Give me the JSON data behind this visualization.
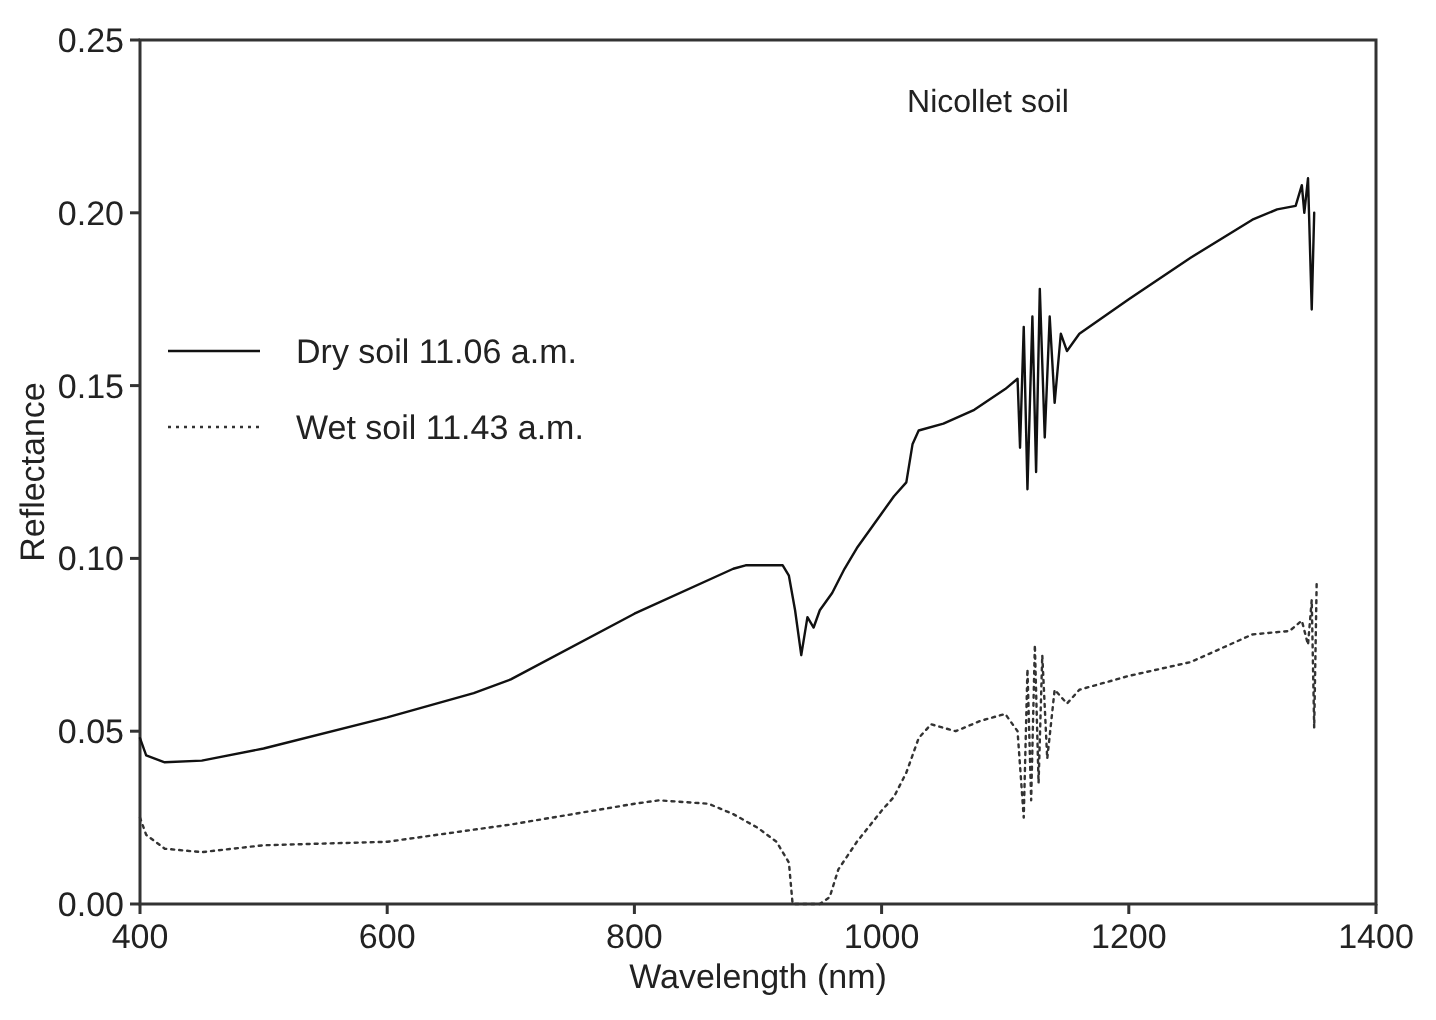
{
  "chart_data": {
    "type": "line",
    "xlabel": "Wavelength (nm)",
    "ylabel": "Reflectance",
    "annotations": [
      "Nicollet soil"
    ],
    "xlim": [
      400,
      1400
    ],
    "xticks": [
      400,
      600,
      800,
      1000,
      1200,
      1400
    ],
    "ylim": [
      0,
      0.25
    ],
    "yticks": [
      {
        "value": 0,
        "label": "0.00"
      },
      {
        "value": 0.05,
        "label": "0.05"
      },
      {
        "value": 0.1,
        "label": "0.10"
      },
      {
        "value": 0.15,
        "label": "0.15"
      },
      {
        "value": 0.2,
        "label": "0.20"
      },
      {
        "value": 0.25,
        "label": "0.25"
      }
    ],
    "grid": false,
    "legend": "left",
    "series": [
      {
        "name": "Dry soil 11.06 a.m.",
        "color": "#111111",
        "line_style": "solid",
        "x": [
          400,
          405,
          420,
          450,
          500,
          600,
          670,
          700,
          800,
          880,
          890,
          920,
          925,
          930,
          935,
          940,
          945,
          950,
          960,
          970,
          980,
          990,
          1000,
          1010,
          1020,
          1025,
          1030,
          1050,
          1075,
          1100,
          1110,
          1112,
          1115,
          1118,
          1122,
          1125,
          1128,
          1132,
          1136,
          1140,
          1145,
          1150,
          1160,
          1200,
          1250,
          1300,
          1320,
          1335,
          1340,
          1342,
          1345,
          1348,
          1350
        ],
        "values": [
          0.048,
          0.043,
          0.041,
          0.0415,
          0.045,
          0.054,
          0.061,
          0.065,
          0.084,
          0.097,
          0.098,
          0.098,
          0.095,
          0.085,
          0.072,
          0.083,
          0.08,
          0.085,
          0.09,
          0.097,
          0.103,
          0.108,
          0.113,
          0.118,
          0.122,
          0.133,
          0.137,
          0.139,
          0.143,
          0.149,
          0.152,
          0.132,
          0.167,
          0.12,
          0.17,
          0.125,
          0.178,
          0.135,
          0.17,
          0.145,
          0.165,
          0.16,
          0.165,
          0.175,
          0.187,
          0.198,
          0.201,
          0.202,
          0.208,
          0.2,
          0.21,
          0.172,
          0.2
        ]
      },
      {
        "name": "Wet soil 11.43 a.m.",
        "color": "#333333",
        "line_style": "dotted",
        "x": [
          400,
          405,
          420,
          450,
          500,
          600,
          700,
          800,
          820,
          860,
          880,
          900,
          915,
          925,
          928,
          950,
          958,
          965,
          980,
          1000,
          1010,
          1020,
          1030,
          1040,
          1060,
          1080,
          1100,
          1110,
          1115,
          1118,
          1121,
          1124,
          1127,
          1130,
          1134,
          1140,
          1150,
          1160,
          1200,
          1250,
          1300,
          1330,
          1340,
          1345,
          1348,
          1350,
          1352
        ],
        "values": [
          0.025,
          0.02,
          0.016,
          0.015,
          0.017,
          0.018,
          0.023,
          0.029,
          0.03,
          0.029,
          0.026,
          0.022,
          0.018,
          0.012,
          0,
          0,
          0.002,
          0.01,
          0.018,
          0.027,
          0.031,
          0.038,
          0.048,
          0.052,
          0.05,
          0.053,
          0.055,
          0.05,
          0.025,
          0.068,
          0.03,
          0.075,
          0.035,
          0.072,
          0.042,
          0.062,
          0.058,
          0.062,
          0.066,
          0.07,
          0.078,
          0.079,
          0.082,
          0.075,
          0.088,
          0.051,
          0.093
        ]
      }
    ]
  }
}
